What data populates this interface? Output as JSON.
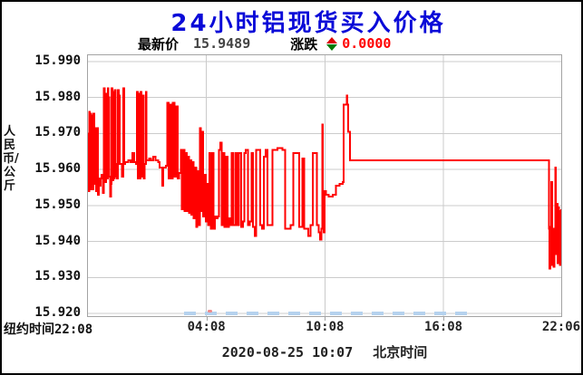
{
  "window": {
    "bg": "#ffffff",
    "border_color": "#000000"
  },
  "header": {
    "title": "24小时铝现货买入价格",
    "title_color": "#0a0ad8",
    "latest_label": "最新价",
    "latest_value": "15.9489",
    "change_label": "涨跌",
    "change_value": "0.0000",
    "change_color": "#ff0000",
    "updown_icon": {
      "name": "updown-arrow-icon",
      "up_color": "#dd0000",
      "down_color": "#007a00"
    }
  },
  "footer": {
    "date": "2020-08-25 10:07",
    "timezone_label": "北京时间"
  },
  "chart_data": {
    "type": "line",
    "title": "24小时铝现货买入价格",
    "ylabel": "人民币/公斤",
    "xlabel_left": "纽约时间",
    "x_ticks": [
      "22:08",
      "04:08",
      "10:08",
      "16:08",
      "22:06"
    ],
    "x_tick_hours": [
      0,
      6,
      12,
      18,
      23.9667
    ],
    "xlim_hours": [
      0,
      23.9667
    ],
    "y_ticks": [
      "15.990",
      "15.980",
      "15.970",
      "15.960",
      "15.950",
      "15.940",
      "15.930",
      "15.920"
    ],
    "ylim": [
      15.91925,
      15.99175
    ],
    "grid": true,
    "grid_color": "#cbcbcb",
    "line_color": "#ff0000",
    "legend": "none",
    "series": [
      {
        "name": "铝现货买入价格",
        "points": [
          [
            0.0,
            15.97
          ],
          [
            0.03,
            15.954
          ],
          [
            0.07,
            15.976
          ],
          [
            0.1,
            15.9545
          ],
          [
            0.14,
            15.9755
          ],
          [
            0.17,
            15.955
          ],
          [
            0.21,
            15.975
          ],
          [
            0.24,
            15.9545
          ],
          [
            0.28,
            15.9755
          ],
          [
            0.31,
            15.956
          ],
          [
            0.35,
            15.958
          ],
          [
            0.38,
            15.9715
          ],
          [
            0.42,
            15.954
          ],
          [
            0.46,
            15.9715
          ],
          [
            0.5,
            15.953
          ],
          [
            0.55,
            15.9575
          ],
          [
            0.6,
            15.9555
          ],
          [
            0.65,
            15.9575
          ],
          [
            0.7,
            15.9585
          ],
          [
            0.75,
            15.9535
          ],
          [
            0.8,
            15.9825
          ],
          [
            0.84,
            15.98
          ],
          [
            0.88,
            15.9565
          ],
          [
            0.92,
            15.981
          ],
          [
            0.96,
            15.9575
          ],
          [
            1.0,
            15.9825
          ],
          [
            1.04,
            15.98
          ],
          [
            1.08,
            15.958
          ],
          [
            1.12,
            15.9525
          ],
          [
            1.16,
            15.956
          ],
          [
            1.2,
            15.9825
          ],
          [
            1.24,
            15.957
          ],
          [
            1.28,
            15.9815
          ],
          [
            1.32,
            15.9575
          ],
          [
            1.36,
            15.982
          ],
          [
            1.4,
            15.958
          ],
          [
            1.44,
            15.9615
          ],
          [
            1.48,
            15.9575
          ],
          [
            1.52,
            15.982
          ],
          [
            1.56,
            15.9805
          ],
          [
            1.6,
            15.9615
          ],
          [
            1.66,
            15.9615
          ],
          [
            1.72,
            15.958
          ],
          [
            1.78,
            15.9825
          ],
          [
            1.83,
            15.9615
          ],
          [
            1.88,
            15.962
          ],
          [
            1.95,
            15.962
          ],
          [
            2.05,
            15.9625
          ],
          [
            2.15,
            15.962
          ],
          [
            2.25,
            15.9645
          ],
          [
            2.35,
            15.962
          ],
          [
            2.43,
            15.9615
          ],
          [
            2.48,
            15.9815
          ],
          [
            2.52,
            15.9575
          ],
          [
            2.57,
            15.981
          ],
          [
            2.62,
            15.9575
          ],
          [
            2.67,
            15.9815
          ],
          [
            2.72,
            15.958
          ],
          [
            2.77,
            15.9805
          ],
          [
            2.82,
            15.9575
          ],
          [
            2.87,
            15.9615
          ],
          [
            2.93,
            15.9815
          ],
          [
            2.97,
            15.9625
          ],
          [
            3.1,
            15.963
          ],
          [
            3.2,
            15.9625
          ],
          [
            3.3,
            15.9635
          ],
          [
            3.42,
            15.9625
          ],
          [
            3.55,
            15.962
          ],
          [
            3.62,
            15.9605
          ],
          [
            3.7,
            15.9605
          ],
          [
            3.76,
            15.9555
          ],
          [
            3.82,
            15.9605
          ],
          [
            3.95,
            15.961
          ],
          [
            4.02,
            15.9785
          ],
          [
            4.08,
            15.9575
          ],
          [
            4.15,
            15.978
          ],
          [
            4.22,
            15.9575
          ],
          [
            4.3,
            15.9785
          ],
          [
            4.38,
            15.958
          ],
          [
            4.46,
            15.9775
          ],
          [
            4.54,
            15.9575
          ],
          [
            4.62,
            15.959
          ],
          [
            4.7,
            15.9655
          ],
          [
            4.76,
            15.949
          ],
          [
            4.82,
            15.9655
          ],
          [
            4.88,
            15.9485
          ],
          [
            4.94,
            15.9645
          ],
          [
            5.0,
            15.9485
          ],
          [
            5.06,
            15.9635
          ],
          [
            5.12,
            15.948
          ],
          [
            5.18,
            15.9625
          ],
          [
            5.24,
            15.9475
          ],
          [
            5.3,
            15.962
          ],
          [
            5.36,
            15.9465
          ],
          [
            5.42,
            15.9605
          ],
          [
            5.48,
            15.944
          ],
          [
            5.54,
            15.9595
          ],
          [
            5.6,
            15.9445
          ],
          [
            5.66,
            15.9715
          ],
          [
            5.72,
            15.9485
          ],
          [
            5.78,
            15.9705
          ],
          [
            5.84,
            15.947
          ],
          [
            5.9,
            15.9585
          ],
          [
            5.96,
            15.9455
          ],
          [
            6.02,
            15.956
          ],
          [
            6.08,
            15.9445
          ],
          [
            6.15,
            15.9645
          ],
          [
            6.22,
            15.9435
          ],
          [
            6.29,
            15.9645
          ],
          [
            6.36,
            15.9435
          ],
          [
            6.43,
            15.947
          ],
          [
            6.5,
            15.9465
          ],
          [
            6.57,
            15.947
          ],
          [
            6.64,
            15.9655
          ],
          [
            6.71,
            15.9675
          ],
          [
            6.78,
            15.9445
          ],
          [
            6.85,
            15.9645
          ],
          [
            6.92,
            15.944
          ],
          [
            6.99,
            15.9635
          ],
          [
            7.06,
            15.944
          ],
          [
            7.13,
            15.9465
          ],
          [
            7.2,
            15.9445
          ],
          [
            7.28,
            15.9645
          ],
          [
            7.35,
            15.9445
          ],
          [
            7.45,
            15.9645
          ],
          [
            7.55,
            15.9445
          ],
          [
            7.65,
            15.9645
          ],
          [
            7.75,
            15.944
          ],
          [
            7.85,
            15.9455
          ],
          [
            7.92,
            15.9645
          ],
          [
            8.0,
            15.9655
          ],
          [
            8.1,
            15.9445
          ],
          [
            8.2,
            15.9455
          ],
          [
            8.28,
            15.9645
          ],
          [
            8.36,
            15.944
          ],
          [
            8.44,
            15.9415
          ],
          [
            8.52,
            15.9655
          ],
          [
            8.62,
            15.9655
          ],
          [
            8.72,
            15.9445
          ],
          [
            8.82,
            15.9435
          ],
          [
            8.9,
            15.9635
          ],
          [
            9.0,
            15.9655
          ],
          [
            9.1,
            15.9445
          ],
          [
            9.34,
            15.9655
          ],
          [
            9.6,
            15.966
          ],
          [
            9.85,
            15.9655
          ],
          [
            9.99,
            15.9435
          ],
          [
            10.15,
            15.9435
          ],
          [
            10.26,
            15.9445
          ],
          [
            10.4,
            15.9645
          ],
          [
            10.6,
            15.9645
          ],
          [
            10.7,
            15.944
          ],
          [
            10.85,
            15.963
          ],
          [
            10.95,
            15.9435
          ],
          [
            11.15,
            15.9415
          ],
          [
            11.28,
            15.9445
          ],
          [
            11.38,
            15.9645
          ],
          [
            11.52,
            15.9645
          ],
          [
            11.6,
            15.9445
          ],
          [
            11.68,
            15.9425
          ],
          [
            11.76,
            15.9405
          ],
          [
            11.82,
            15.9435
          ],
          [
            11.86,
            15.9725
          ],
          [
            11.9,
            15.9435
          ],
          [
            11.94,
            15.9425
          ],
          [
            11.98,
            15.954
          ],
          [
            12.05,
            15.953
          ],
          [
            12.2,
            15.9525
          ],
          [
            12.4,
            15.953
          ],
          [
            12.55,
            15.9555
          ],
          [
            12.75,
            15.956
          ],
          [
            12.9,
            15.9565
          ],
          [
            12.95,
            15.978
          ],
          [
            13.05,
            15.978
          ],
          [
            13.1,
            15.9805
          ],
          [
            13.14,
            15.978
          ],
          [
            13.18,
            15.9705
          ],
          [
            13.28,
            15.9625
          ],
          [
            14.0,
            15.9625
          ],
          [
            16.0,
            15.9625
          ],
          [
            18.0,
            15.9625
          ],
          [
            20.0,
            15.9625
          ],
          [
            22.0,
            15.9625
          ],
          [
            23.3,
            15.9625
          ],
          [
            23.34,
            15.9435
          ],
          [
            23.38,
            15.9325
          ],
          [
            23.42,
            15.944
          ],
          [
            23.46,
            15.9565
          ],
          [
            23.5,
            15.9335
          ],
          [
            23.54,
            15.9435
          ],
          [
            23.58,
            15.933
          ],
          [
            23.62,
            15.9425
          ],
          [
            23.66,
            15.9605
          ],
          [
            23.7,
            15.9365
          ],
          [
            23.74,
            15.9505
          ],
          [
            23.78,
            15.934
          ],
          [
            23.82,
            15.9495
          ],
          [
            23.86,
            15.9405
          ],
          [
            23.9,
            15.9335
          ],
          [
            23.94,
            15.9485
          ],
          [
            23.9667,
            15.9489
          ]
        ]
      }
    ]
  }
}
